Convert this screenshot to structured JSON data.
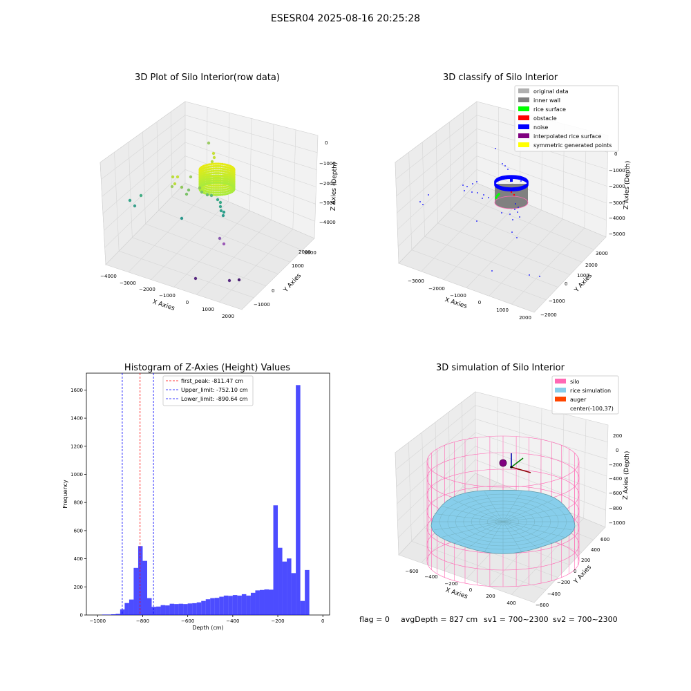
{
  "figure_title": "ESESR04 2025-08-16 20:25:28",
  "footer": {
    "flag": "flag = 0",
    "avg_depth": "avgDepth = 827 cm",
    "sv1": "sv1 = 700~2300",
    "sv2": "sv2 = 700~2300"
  },
  "colors": {
    "hist_bar": "#0000ff",
    "first_peak_line": "#ff0000",
    "limit_lines": "#0000ff",
    "original_data": "#b0b0b0",
    "inner_wall": "#808080",
    "rice_surface": "#00ff00",
    "obstacle": "#ff0000",
    "noise": "#0000ff",
    "interpolated_rice_surface": "#800080",
    "symmetric_generated_points": "#ffff00",
    "silo": "#ff69b4",
    "rice_simulation": "#87ceeb",
    "auger": "#ff4500"
  },
  "panels": {
    "raw": {
      "title": "3D Plot of Silo Interior(row data)",
      "xlabel": "X Axies",
      "ylabel": "Y Axies",
      "zlabel": "Z Axies (Depth)",
      "xticks": [
        "−4000",
        "−3000",
        "−2000",
        "−1000",
        "0",
        "1000",
        "2000"
      ],
      "yticks": [
        "−1000",
        "0",
        "1000",
        "2000",
        "3000"
      ],
      "zticks": [
        "0",
        "−1000",
        "−2000",
        "−3000",
        "−4000"
      ]
    },
    "classify": {
      "title": "3D classify of Silo Interior",
      "xlabel": "X Axies",
      "ylabel": "Y Axies",
      "zlabel": "Z Axies (Depth)",
      "xticks": [
        "−3000",
        "−2000",
        "−1000",
        "0",
        "1000",
        "2000"
      ],
      "yticks": [
        "−2000",
        "−1000",
        "0",
        "1000",
        "2000",
        "3000"
      ],
      "zticks": [
        "0",
        "−1000",
        "−2000",
        "−3000",
        "−4000",
        "−5000"
      ],
      "legend": [
        {
          "label": "original data",
          "color": "#b0b0b0"
        },
        {
          "label": "inner wall",
          "color": "#808080"
        },
        {
          "label": "rice surface",
          "color": "#00ff00"
        },
        {
          "label": "obstacle",
          "color": "#ff0000"
        },
        {
          "label": "noise",
          "color": "#0000ff"
        },
        {
          "label": "interpolated rice surface",
          "color": "#800080"
        },
        {
          "label": "symmetric generated points",
          "color": "#ffff00"
        }
      ]
    },
    "simulation": {
      "title": "3D simulation of Silo Interior",
      "xlabel": "X Axies",
      "ylabel": "Y Axies",
      "zlabel": "Z Axies (Depth)",
      "xticks": [
        "−600",
        "−400",
        "−200",
        "0",
        "200",
        "400"
      ],
      "yticks": [
        "−600",
        "−400",
        "−200",
        "0",
        "200",
        "400",
        "600"
      ],
      "zticks": [
        "200",
        "0",
        "−200",
        "−400",
        "−600",
        "−800",
        "−1000"
      ],
      "legend": [
        {
          "label": "silo",
          "color": "#ff69b4"
        },
        {
          "label": "rice simulation",
          "color": "#87ceeb"
        },
        {
          "label": "auger",
          "color": "#ff4500"
        },
        {
          "label": "center(-100,37)",
          "color": ""
        }
      ]
    }
  },
  "chart_data": [
    {
      "type": "scatter",
      "title": "3D Plot of Silo Interior(row data)",
      "xlabel": "X Axies",
      "ylabel": "Y Axies",
      "zlabel": "Z Axies (Depth)",
      "xlim": [
        -4000,
        2000
      ],
      "ylim": [
        -1000,
        3000
      ],
      "zlim": [
        -4000,
        0
      ],
      "grid": true
    },
    {
      "type": "scatter",
      "title": "3D classify of Silo Interior",
      "xlabel": "X Axies",
      "ylabel": "Y Axies",
      "zlabel": "Z Axies (Depth)",
      "xlim": [
        -3000,
        2000
      ],
      "ylim": [
        -2000,
        3000
      ],
      "zlim": [
        -5000,
        0
      ],
      "legend_position": "top-right",
      "series": [
        {
          "name": "original data"
        },
        {
          "name": "inner wall"
        },
        {
          "name": "rice surface"
        },
        {
          "name": "obstacle"
        },
        {
          "name": "noise"
        },
        {
          "name": "interpolated rice surface"
        },
        {
          "name": "symmetric generated points"
        }
      ],
      "grid": true
    },
    {
      "type": "histogram",
      "title": "Histogram of Z-Axies (Height) Values",
      "xlabel": "Depth (cm)",
      "ylabel": "Frequency",
      "xlim": [
        -1050,
        30
      ],
      "ylim": [
        0,
        1720
      ],
      "xticks": [
        -1000,
        -800,
        -600,
        -400,
        -200,
        0
      ],
      "yticks": [
        0,
        200,
        400,
        600,
        800,
        1000,
        1200,
        1400,
        1600
      ],
      "bin_width": 20,
      "bins": [
        {
          "x0": -980,
          "count": 3
        },
        {
          "x0": -960,
          "count": 3
        },
        {
          "x0": -940,
          "count": 5
        },
        {
          "x0": -920,
          "count": 8
        },
        {
          "x0": -900,
          "count": 40
        },
        {
          "x0": -880,
          "count": 85
        },
        {
          "x0": -860,
          "count": 110
        },
        {
          "x0": -840,
          "count": 335
        },
        {
          "x0": -820,
          "count": 490
        },
        {
          "x0": -800,
          "count": 385
        },
        {
          "x0": -780,
          "count": 120
        },
        {
          "x0": -760,
          "count": 58
        },
        {
          "x0": -740,
          "count": 60
        },
        {
          "x0": -720,
          "count": 70
        },
        {
          "x0": -700,
          "count": 68
        },
        {
          "x0": -680,
          "count": 80
        },
        {
          "x0": -660,
          "count": 78
        },
        {
          "x0": -640,
          "count": 80
        },
        {
          "x0": -620,
          "count": 78
        },
        {
          "x0": -600,
          "count": 82
        },
        {
          "x0": -580,
          "count": 84
        },
        {
          "x0": -560,
          "count": 90
        },
        {
          "x0": -540,
          "count": 100
        },
        {
          "x0": -520,
          "count": 112
        },
        {
          "x0": -500,
          "count": 120
        },
        {
          "x0": -480,
          "count": 122
        },
        {
          "x0": -460,
          "count": 130
        },
        {
          "x0": -440,
          "count": 138
        },
        {
          "x0": -420,
          "count": 136
        },
        {
          "x0": -400,
          "count": 142
        },
        {
          "x0": -380,
          "count": 138
        },
        {
          "x0": -360,
          "count": 148
        },
        {
          "x0": -340,
          "count": 138
        },
        {
          "x0": -320,
          "count": 158
        },
        {
          "x0": -300,
          "count": 175
        },
        {
          "x0": -280,
          "count": 178
        },
        {
          "x0": -260,
          "count": 182
        },
        {
          "x0": -240,
          "count": 180
        },
        {
          "x0": -220,
          "count": 780
        },
        {
          "x0": -200,
          "count": 478
        },
        {
          "x0": -180,
          "count": 380
        },
        {
          "x0": -160,
          "count": 402
        },
        {
          "x0": -140,
          "count": 298
        },
        {
          "x0": -120,
          "count": 1635
        },
        {
          "x0": -100,
          "count": 100
        },
        {
          "x0": -80,
          "count": 320
        }
      ],
      "vlines": [
        {
          "name": "first_peak",
          "label": "first_peak: -811.47 cm",
          "x": -811.47,
          "color": "#ff0000"
        },
        {
          "name": "Upper_limit",
          "label": "Upper_limit: -752.10 cm",
          "x": -752.1,
          "color": "#0000ff"
        },
        {
          "name": "Lower_limit",
          "label": "Lower_limit: -890.64 cm",
          "x": -890.64,
          "color": "#0000ff"
        }
      ],
      "legend_position": "top-center"
    },
    {
      "type": "surface",
      "title": "3D simulation of Silo Interior",
      "xlabel": "X Axies",
      "ylabel": "Y Axies",
      "zlabel": "Z Axies (Depth)",
      "xlim": [
        -700,
        500
      ],
      "ylim": [
        -700,
        700
      ],
      "zlim": [
        -1000,
        250
      ],
      "legend_position": "top-right",
      "series": [
        {
          "name": "silo"
        },
        {
          "name": "rice simulation"
        },
        {
          "name": "auger"
        }
      ],
      "annotations": [
        "center(-100,37)"
      ],
      "grid": true
    }
  ]
}
